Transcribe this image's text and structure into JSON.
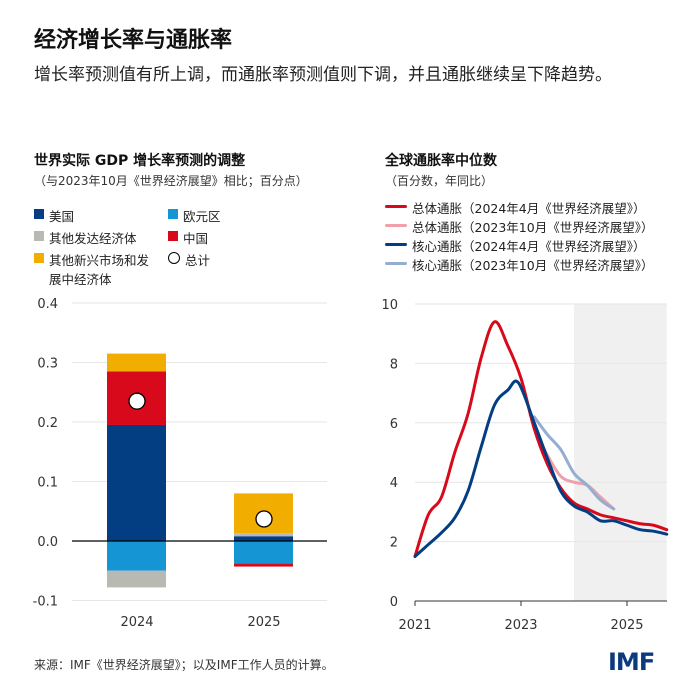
{
  "title": "经济增长率与通胀率",
  "subtitle": "增长率预测值有所上调，而通胀率预测值则下调，并且通胀继续呈下降趋势。",
  "source": "来源：IMF《世界经济展望》；以及IMF工作人员的计算。",
  "logo": "IMF",
  "colors": {
    "us": "#033e82",
    "euro": "#1595d3",
    "other_ae": "#b9b9b4",
    "china": "#d7091b",
    "other_emde": "#f2ae00",
    "headline_apr": "#d7091b",
    "headline_oct": "#f0a0a8",
    "core_apr": "#033e82",
    "core_oct": "#93aed0",
    "shade": "#f0f0f0"
  },
  "chart_data": [
    {
      "type": "bar",
      "title": "世界实际 GDP 增长率预测的调整",
      "subtitle": "（与2023年10月《世界经济展望》相比；百分点）",
      "categories": [
        "2024",
        "2025"
      ],
      "series": [
        {
          "name": "美国",
          "key": "us",
          "values": [
            0.195,
            0.008
          ]
        },
        {
          "name": "欧元区",
          "key": "euro",
          "values": [
            -0.05,
            -0.038
          ]
        },
        {
          "name": "其他发达经济体",
          "key": "other_ae",
          "values": [
            -0.028,
            0.005
          ]
        },
        {
          "name": "中国",
          "key": "china",
          "values": [
            0.09,
            -0.005
          ]
        },
        {
          "name": "其他新兴市场和发展中经济体",
          "key": "other_emde",
          "values": [
            0.03,
            0.067
          ]
        }
      ],
      "total": {
        "name": "总计",
        "values": [
          0.235,
          0.037
        ]
      },
      "ylim": [
        -0.1,
        0.4
      ],
      "yticks": [
        "-0.1",
        "0.0",
        "0.1",
        "0.2",
        "0.3",
        "0.4"
      ],
      "grid": true,
      "legend": "top"
    },
    {
      "type": "line",
      "title": "全球通胀率中位数",
      "subtitle": "（百分数，年同比）",
      "xlim": [
        2021,
        2025.75
      ],
      "ylim": [
        0,
        10
      ],
      "xticks": [
        "2021",
        "2023",
        "2025"
      ],
      "yticks": [
        "0",
        "2",
        "4",
        "6",
        "8",
        "10"
      ],
      "grid": true,
      "legend": "top",
      "shaded_projection": [
        2024,
        2025.75
      ],
      "series": [
        {
          "name": "总体通胀（2024年4月《世界经济展望》）",
          "key": "headline_apr",
          "points": [
            [
              2021,
              1.5
            ],
            [
              2021.25,
              2.9
            ],
            [
              2021.5,
              3.5
            ],
            [
              2021.75,
              5.0
            ],
            [
              2022,
              6.3
            ],
            [
              2022.25,
              8.2
            ],
            [
              2022.5,
              9.4
            ],
            [
              2022.75,
              8.6
            ],
            [
              2023,
              7.5
            ],
            [
              2023.25,
              5.8
            ],
            [
              2023.5,
              4.6
            ],
            [
              2023.75,
              3.8
            ],
            [
              2024,
              3.3
            ],
            [
              2024.25,
              3.1
            ],
            [
              2024.5,
              2.9
            ],
            [
              2024.75,
              2.8
            ],
            [
              2025,
              2.7
            ],
            [
              2025.25,
              2.6
            ],
            [
              2025.5,
              2.55
            ],
            [
              2025.75,
              2.4
            ]
          ]
        },
        {
          "name": "总体通胀（2023年10月《世界经济展望》）",
          "key": "headline_oct",
          "points": [
            [
              2023.25,
              5.8
            ],
            [
              2023.5,
              4.9
            ],
            [
              2023.75,
              4.2
            ],
            [
              2024,
              4.0
            ],
            [
              2024.25,
              3.9
            ],
            [
              2024.5,
              3.5
            ],
            [
              2024.75,
              3.1
            ]
          ]
        },
        {
          "name": "核心通胀（2024年4月《世界经济展望》）",
          "key": "core_apr",
          "points": [
            [
              2021,
              1.5
            ],
            [
              2021.25,
              1.9
            ],
            [
              2021.5,
              2.3
            ],
            [
              2021.75,
              2.8
            ],
            [
              2022,
              3.7
            ],
            [
              2022.25,
              5.2
            ],
            [
              2022.5,
              6.6
            ],
            [
              2022.75,
              7.1
            ],
            [
              2022.95,
              7.35
            ],
            [
              2023.25,
              6.0
            ],
            [
              2023.5,
              4.8
            ],
            [
              2023.75,
              3.7
            ],
            [
              2024,
              3.2
            ],
            [
              2024.25,
              3.0
            ],
            [
              2024.5,
              2.7
            ],
            [
              2024.75,
              2.7
            ],
            [
              2025,
              2.55
            ],
            [
              2025.25,
              2.4
            ],
            [
              2025.5,
              2.35
            ],
            [
              2025.75,
              2.25
            ]
          ]
        },
        {
          "name": "核心通胀（2023年10月《世界经济展望》）",
          "key": "core_oct",
          "points": [
            [
              2023.25,
              6.2
            ],
            [
              2023.5,
              5.6
            ],
            [
              2023.75,
              5.1
            ],
            [
              2024,
              4.3
            ],
            [
              2024.25,
              3.9
            ],
            [
              2024.5,
              3.4
            ],
            [
              2024.75,
              3.1
            ]
          ]
        }
      ]
    }
  ]
}
